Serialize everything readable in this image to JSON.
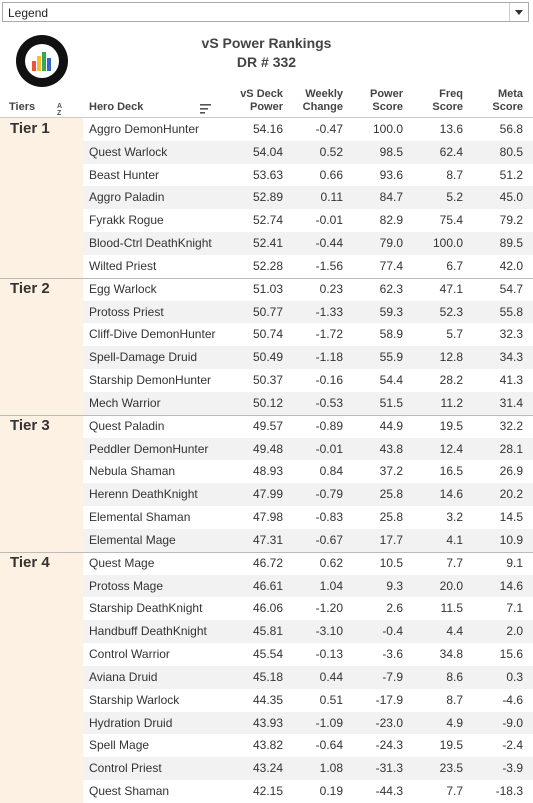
{
  "legend": {
    "label": "Legend"
  },
  "header": {
    "title": "vS Power Rankings",
    "subtitle": "DR # 332"
  },
  "columns": [
    {
      "lines": [
        "Tiers"
      ]
    },
    {
      "lines": [
        "Hero Deck"
      ]
    },
    {
      "lines": [
        "vS Deck",
        "Power"
      ]
    },
    {
      "lines": [
        "Weekly",
        "Change"
      ]
    },
    {
      "lines": [
        "Power",
        "Score"
      ]
    },
    {
      "lines": [
        "Freq",
        "Score"
      ]
    },
    {
      "lines": [
        "Meta",
        "Score"
      ]
    }
  ],
  "tiers": [
    {
      "name": "Tier 1",
      "rows": [
        [
          "Aggro DemonHunter",
          "54.16",
          "-0.47",
          "100.0",
          "13.6",
          "56.8"
        ],
        [
          "Quest Warlock",
          "54.04",
          "0.52",
          "98.5",
          "62.4",
          "80.5"
        ],
        [
          "Beast Hunter",
          "53.63",
          "0.66",
          "93.6",
          "8.7",
          "51.2"
        ],
        [
          "Aggro Paladin",
          "52.89",
          "0.11",
          "84.7",
          "5.2",
          "45.0"
        ],
        [
          "Fyrakk Rogue",
          "52.74",
          "-0.01",
          "82.9",
          "75.4",
          "79.2"
        ],
        [
          "Blood-Ctrl DeathKnight",
          "52.41",
          "-0.44",
          "79.0",
          "100.0",
          "89.5"
        ],
        [
          "Wilted Priest",
          "52.28",
          "-1.56",
          "77.4",
          "6.7",
          "42.0"
        ]
      ]
    },
    {
      "name": "Tier 2",
      "rows": [
        [
          "Egg Warlock",
          "51.03",
          "0.23",
          "62.3",
          "47.1",
          "54.7"
        ],
        [
          "Protoss Priest",
          "50.77",
          "-1.33",
          "59.3",
          "52.3",
          "55.8"
        ],
        [
          "Cliff-Dive DemonHunter",
          "50.74",
          "-1.72",
          "58.9",
          "5.7",
          "32.3"
        ],
        [
          "Spell-Damage Druid",
          "50.49",
          "-1.18",
          "55.9",
          "12.8",
          "34.3"
        ],
        [
          "Starship DemonHunter",
          "50.37",
          "-0.16",
          "54.4",
          "28.2",
          "41.3"
        ],
        [
          "Mech Warrior",
          "50.12",
          "-0.53",
          "51.5",
          "11.2",
          "31.4"
        ]
      ]
    },
    {
      "name": "Tier 3",
      "rows": [
        [
          "Quest Paladin",
          "49.57",
          "-0.89",
          "44.9",
          "19.5",
          "32.2"
        ],
        [
          "Peddler DemonHunter",
          "49.48",
          "-0.01",
          "43.8",
          "12.4",
          "28.1"
        ],
        [
          "Nebula Shaman",
          "48.93",
          "0.84",
          "37.2",
          "16.5",
          "26.9"
        ],
        [
          "Herenn DeathKnight",
          "47.99",
          "-0.79",
          "25.8",
          "14.6",
          "20.2"
        ],
        [
          "Elemental Shaman",
          "47.98",
          "-0.83",
          "25.8",
          "3.2",
          "14.5"
        ],
        [
          "Elemental Mage",
          "47.31",
          "-0.67",
          "17.7",
          "4.1",
          "10.9"
        ]
      ]
    },
    {
      "name": "Tier 4",
      "rows": [
        [
          "Quest Mage",
          "46.72",
          "0.62",
          "10.5",
          "7.7",
          "9.1"
        ],
        [
          "Protoss Mage",
          "46.61",
          "1.04",
          "9.3",
          "20.0",
          "14.6"
        ],
        [
          "Starship DeathKnight",
          "46.06",
          "-1.20",
          "2.6",
          "11.5",
          "7.1"
        ],
        [
          "Handbuff DeathKnight",
          "45.81",
          "-3.10",
          "-0.4",
          "4.4",
          "2.0"
        ],
        [
          "Control Warrior",
          "45.54",
          "-0.13",
          "-3.6",
          "34.8",
          "15.6"
        ],
        [
          "Aviana Druid",
          "45.18",
          "0.44",
          "-7.9",
          "8.6",
          "0.3"
        ],
        [
          "Starship Warlock",
          "44.35",
          "0.51",
          "-17.9",
          "8.7",
          "-4.6"
        ],
        [
          "Hydration Druid",
          "43.93",
          "-1.09",
          "-23.0",
          "4.9",
          "-9.0"
        ],
        [
          "Spell Mage",
          "43.82",
          "-0.64",
          "-24.3",
          "19.5",
          "-2.4"
        ],
        [
          "Control Priest",
          "43.24",
          "1.08",
          "-31.3",
          "23.5",
          "-3.9"
        ],
        [
          "Quest Shaman",
          "42.15",
          "0.19",
          "-44.3",
          "7.7",
          "-18.3"
        ]
      ]
    }
  ]
}
